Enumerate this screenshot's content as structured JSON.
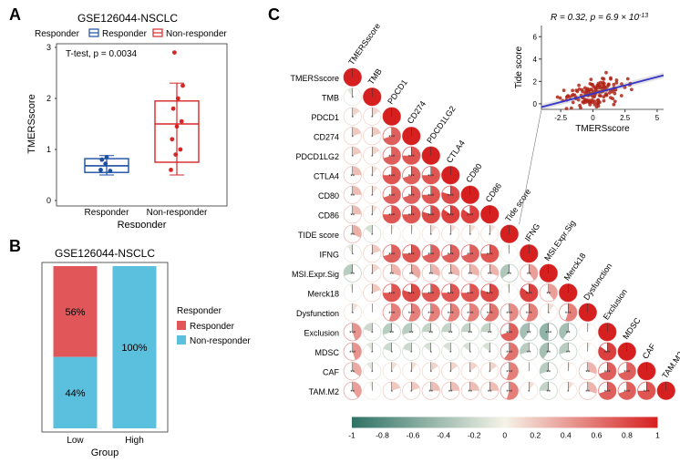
{
  "panelA": {
    "label": "A",
    "title": "GSE126044-NSCLC",
    "legend_title": "Responder",
    "legend_items": [
      "Responder",
      "Non-responder"
    ],
    "legend_colors": [
      "#1a4fa3",
      "#d62728"
    ],
    "ttest_text": "T-test, p = 0.0034",
    "ylabel": "TMERSscore",
    "xlabel": "Responder",
    "xcats": [
      "Responder",
      "Non-responder"
    ],
    "ylim": [
      0,
      3
    ],
    "yticks": [
      0,
      1,
      2,
      3
    ],
    "box1": {
      "q1": 0.55,
      "med": 0.68,
      "q3": 0.82,
      "wlo": 0.5,
      "whi": 0.88,
      "color": "#1a4fa3",
      "points": [
        0.6,
        0.72,
        0.58,
        0.8,
        0.85
      ]
    },
    "box2": {
      "q1": 0.75,
      "med": 1.5,
      "q3": 1.95,
      "wlo": 0.5,
      "whi": 2.3,
      "color": "#d62728",
      "points": [
        0.6,
        0.9,
        1.0,
        1.2,
        1.45,
        1.55,
        1.8,
        2.0,
        2.25,
        2.9
      ]
    }
  },
  "panelB": {
    "label": "B",
    "title": "GSE126044-NSCLC",
    "legend_title": "Responder",
    "legend_items": [
      "Responder",
      "Non-responder"
    ],
    "legend_colors": [
      "#e15759",
      "#5bc0de"
    ],
    "xlabel": "Group",
    "xcats": [
      "Low",
      "High"
    ],
    "bars": {
      "Low": {
        "Responder": 56,
        "NonResponder": 44
      },
      "High": {
        "Responder": 0,
        "NonResponder": 100
      }
    }
  },
  "panelC": {
    "label": "C",
    "vars": [
      "TMERSscore",
      "TMB",
      "PDCD1",
      "CD274",
      "PDCD1LG2",
      "CTLA4",
      "CD80",
      "CD86",
      "TIDE score",
      "IFNG",
      "MSI.Expr.Sig",
      "Merck18",
      "Dysfunction",
      "Exclusion",
      "MDSC",
      "CAF",
      "TAM.M2"
    ],
    "diag_labels": [
      "TMERSscore",
      "TMB",
      "PDCD1",
      "CD274",
      "PDCD1LG2",
      "CTLA4",
      "CD80",
      "CD86",
      "Tide score",
      "IFNG",
      "MSI.Expr.Sig",
      "Merck18",
      "Dysfunction",
      "Exclusion",
      "MDSC",
      "CAF",
      "TAM.M2"
    ],
    "corr": [
      [
        1.0,
        -0.1,
        0.15,
        0.2,
        0.2,
        0.25,
        0.25,
        0.25,
        0.32,
        -0.1,
        -0.3,
        -0.05,
        0.1,
        0.45,
        0.45,
        0.35,
        0.4
      ],
      [
        -0.1,
        1.0,
        0.15,
        0.2,
        0.15,
        0.1,
        0.1,
        0.1,
        -0.15,
        0.2,
        0.15,
        0.2,
        0.0,
        -0.2,
        -0.1,
        -0.1,
        -0.05
      ],
      [
        0.15,
        0.15,
        1.0,
        0.7,
        0.7,
        0.75,
        0.7,
        0.75,
        0.05,
        0.7,
        0.3,
        0.75,
        0.55,
        -0.3,
        -0.2,
        0.1,
        0.2
      ],
      [
        0.2,
        0.2,
        0.7,
        1.0,
        0.75,
        0.7,
        0.7,
        0.75,
        0.05,
        0.75,
        0.35,
        0.8,
        0.55,
        -0.3,
        -0.2,
        0.1,
        0.2
      ],
      [
        0.2,
        0.15,
        0.7,
        0.75,
        1.0,
        0.75,
        0.75,
        0.8,
        0.1,
        0.7,
        0.3,
        0.75,
        0.55,
        -0.25,
        -0.15,
        0.15,
        0.25
      ],
      [
        0.25,
        0.1,
        0.75,
        0.7,
        0.75,
        1.0,
        0.8,
        0.85,
        0.1,
        0.7,
        0.3,
        0.75,
        0.55,
        -0.25,
        -0.15,
        0.15,
        0.25
      ],
      [
        0.25,
        0.1,
        0.7,
        0.7,
        0.75,
        0.8,
        1.0,
        0.85,
        0.1,
        0.7,
        0.3,
        0.75,
        0.55,
        -0.25,
        -0.15,
        0.15,
        0.25
      ],
      [
        0.25,
        0.1,
        0.75,
        0.75,
        0.8,
        0.85,
        0.85,
        1.0,
        0.1,
        0.75,
        0.3,
        0.8,
        0.6,
        -0.25,
        -0.15,
        0.15,
        0.25
      ],
      [
        0.32,
        -0.15,
        0.05,
        0.05,
        0.1,
        0.1,
        0.1,
        0.1,
        1.0,
        -0.05,
        -0.35,
        -0.05,
        0.5,
        0.7,
        0.6,
        0.55,
        0.55
      ],
      [
        -0.1,
        0.2,
        0.7,
        0.75,
        0.7,
        0.7,
        0.7,
        0.75,
        -0.05,
        1.0,
        0.4,
        0.85,
        0.55,
        -0.4,
        -0.3,
        0.0,
        0.1
      ],
      [
        -0.3,
        0.15,
        0.3,
        0.35,
        0.3,
        0.3,
        0.3,
        0.3,
        -0.35,
        0.4,
        1.0,
        0.4,
        0.1,
        -0.5,
        -0.4,
        -0.3,
        -0.25
      ],
      [
        -0.05,
        0.2,
        0.75,
        0.8,
        0.75,
        0.75,
        0.75,
        0.8,
        -0.05,
        0.85,
        0.4,
        1.0,
        0.55,
        -0.4,
        -0.3,
        0.05,
        0.1
      ],
      [
        0.1,
        0.0,
        0.55,
        0.55,
        0.55,
        0.55,
        0.55,
        0.6,
        0.5,
        0.55,
        0.1,
        0.55,
        1.0,
        0.05,
        0.05,
        0.3,
        0.3
      ],
      [
        0.45,
        -0.2,
        -0.3,
        -0.3,
        -0.25,
        -0.25,
        -0.25,
        -0.25,
        0.7,
        -0.4,
        -0.5,
        -0.4,
        0.05,
        1.0,
        0.85,
        0.7,
        0.7
      ],
      [
        0.45,
        -0.1,
        -0.2,
        -0.2,
        -0.15,
        -0.15,
        -0.15,
        -0.15,
        0.6,
        -0.3,
        -0.4,
        -0.3,
        0.05,
        0.85,
        1.0,
        0.7,
        0.7
      ],
      [
        0.35,
        -0.1,
        0.1,
        0.1,
        0.15,
        0.15,
        0.15,
        0.15,
        0.55,
        0.0,
        -0.3,
        0.05,
        0.3,
        0.7,
        0.7,
        1.0,
        0.75
      ],
      [
        0.4,
        -0.05,
        0.2,
        0.2,
        0.25,
        0.25,
        0.25,
        0.25,
        0.55,
        0.1,
        -0.25,
        0.1,
        0.3,
        0.7,
        0.7,
        0.75,
        1.0
      ]
    ],
    "colorbar": {
      "ticks": [
        -1,
        -0.8,
        -0.6,
        -0.4,
        -0.2,
        0,
        0.2,
        0.4,
        0.6,
        0.8,
        1
      ]
    },
    "palette_neg": "#2e7265",
    "palette_mid": "#f5f3e8",
    "palette_pos": "#d62020",
    "inset": {
      "r_text": "R = 0.32, p = 6.9 × 10",
      "r_exp": "-13",
      "xlabel": "TMERSscore",
      "ylabel": "Tide score",
      "xlim": [
        -4,
        5.5
      ],
      "ylim": [
        -0.5,
        7
      ],
      "xticks": [
        -2.5,
        0,
        2.5,
        5.0
      ],
      "yticks": [
        0,
        2,
        4,
        6
      ],
      "point_color": "#b02418",
      "line_color": "#1818e0",
      "slope": 0.3,
      "intercept": 0.9,
      "n_points": 160
    }
  }
}
